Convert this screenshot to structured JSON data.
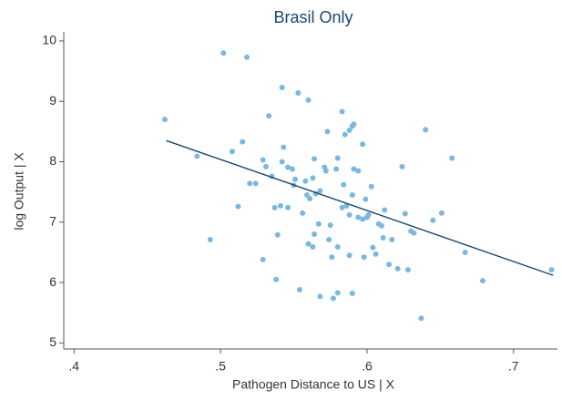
{
  "chart_data": {
    "type": "scatter",
    "title": "Brasil Only",
    "x_label": "Pathogen Distance to US | X",
    "y_label": "log Output | X",
    "color": "#7ab8e0",
    "fit_color": "#1a476f",
    "x": [
      0.462,
      0.502,
      0.518,
      0.484,
      0.493,
      0.508,
      0.515,
      0.512,
      0.533,
      0.542,
      0.553,
      0.56,
      0.529,
      0.531,
      0.535,
      0.52,
      0.524,
      0.543,
      0.542,
      0.546,
      0.549,
      0.551,
      0.55,
      0.558,
      0.564,
      0.563,
      0.565,
      0.559,
      0.561,
      0.568,
      0.571,
      0.572,
      0.579,
      0.58,
      0.573,
      0.583,
      0.585,
      0.588,
      0.59,
      0.591,
      0.597,
      0.591,
      0.594,
      0.584,
      0.59,
      0.603,
      0.586,
      0.583,
      0.588,
      0.594,
      0.597,
      0.6,
      0.601,
      0.599,
      0.608,
      0.61,
      0.612,
      0.611,
      0.617,
      0.624,
      0.626,
      0.63,
      0.632,
      0.64,
      0.658,
      0.645,
      0.651,
      0.667,
      0.679,
      0.726,
      0.637,
      0.537,
      0.541,
      0.546,
      0.556,
      0.539,
      0.529,
      0.538,
      0.554,
      0.567,
      0.564,
      0.56,
      0.563,
      0.574,
      0.576,
      0.58,
      0.588,
      0.568,
      0.577,
      0.58,
      0.59,
      0.598,
      0.604,
      0.606,
      0.615,
      0.621,
      0.628,
      0.575
    ],
    "values": [
      8.7,
      9.8,
      9.73,
      8.09,
      6.71,
      8.17,
      8.33,
      7.26,
      8.76,
      9.23,
      9.14,
      9.02,
      8.03,
      7.92,
      7.76,
      7.64,
      7.64,
      8.24,
      8.0,
      7.91,
      7.88,
      7.71,
      7.61,
      7.68,
      8.05,
      7.73,
      7.47,
      7.45,
      7.39,
      7.52,
      7.91,
      7.85,
      7.88,
      8.06,
      8.5,
      8.83,
      8.45,
      8.52,
      8.59,
      8.62,
      8.29,
      7.88,
      7.85,
      7.62,
      7.45,
      7.59,
      7.27,
      7.24,
      7.12,
      7.08,
      7.05,
      7.08,
      7.12,
      7.38,
      6.97,
      6.94,
      7.2,
      6.74,
      6.71,
      7.92,
      7.14,
      6.85,
      6.82,
      8.53,
      8.06,
      7.03,
      7.15,
      6.5,
      6.03,
      6.21,
      5.41,
      7.24,
      7.27,
      7.24,
      7.15,
      6.79,
      6.38,
      6.05,
      5.88,
      6.97,
      6.8,
      6.64,
      6.59,
      6.71,
      6.42,
      6.59,
      6.45,
      5.77,
      5.74,
      5.83,
      5.82,
      6.42,
      6.58,
      6.47,
      6.3,
      6.23,
      6.21,
      6.95
    ],
    "fit": {
      "x": [
        0.463,
        0.727
      ],
      "values": [
        8.35,
        6.12
      ]
    },
    "xlim": [
      0.393,
      0.73
    ],
    "ylim": [
      4.9,
      10.15
    ],
    "xticks": [
      {
        "value": 0.4,
        "label": ".4"
      },
      {
        "value": 0.5,
        "label": ".5"
      },
      {
        "value": 0.6,
        "label": ".6"
      },
      {
        "value": 0.7,
        "label": ".7"
      }
    ],
    "yticks": [
      5,
      6,
      7,
      8,
      9,
      10
    ]
  }
}
